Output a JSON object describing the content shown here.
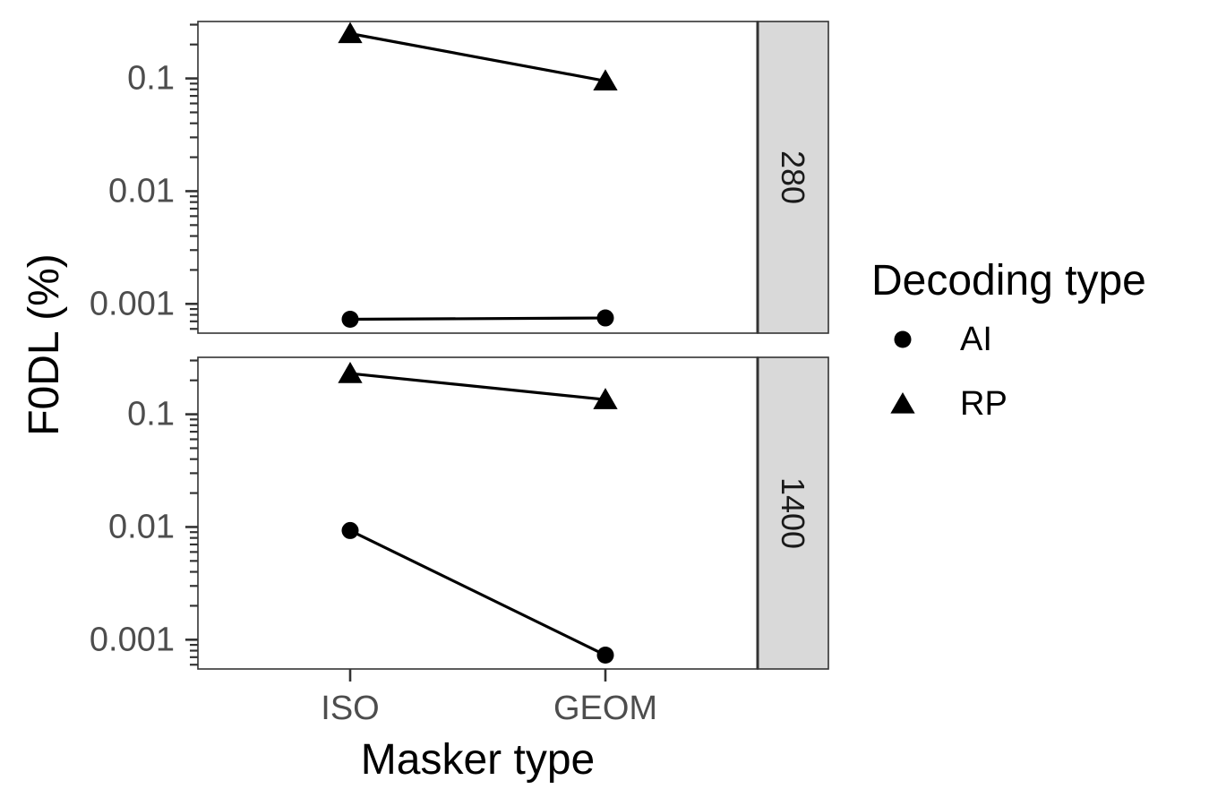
{
  "chart_data": {
    "type": "line",
    "yscale": "log10",
    "ylim": [
      0.00055,
      0.32
    ],
    "xlabel": "Masker type",
    "ylabel": "F0DL (%)",
    "categories": [
      "ISO",
      "GEOM"
    ],
    "y_ticks": [
      {
        "value": 0.001,
        "label": "0.001"
      },
      {
        "value": 0.01,
        "label": "0.01"
      },
      {
        "value": 0.1,
        "label": "0.1"
      }
    ],
    "legend": {
      "title": "Decoding type",
      "position": "right",
      "entries": [
        {
          "name": "AI",
          "shape": "circle"
        },
        {
          "name": "RP",
          "shape": "triangle"
        }
      ]
    },
    "facets": [
      {
        "label": "280",
        "series": [
          {
            "name": "AI",
            "shape": "circle",
            "values": [
              0.00073,
              0.00075
            ]
          },
          {
            "name": "RP",
            "shape": "triangle",
            "values": [
              0.25,
              0.095
            ]
          }
        ]
      },
      {
        "label": "1400",
        "series": [
          {
            "name": "AI",
            "shape": "circle",
            "values": [
              0.0093,
              0.00073
            ]
          },
          {
            "name": "RP",
            "shape": "triangle",
            "values": [
              0.23,
              0.135
            ]
          }
        ]
      }
    ],
    "colors": {
      "marks": "#000000",
      "panel_border": "#333333",
      "strip_fill": "#d9d9d9",
      "tick_text": "#4d4d4d"
    },
    "grid": false
  }
}
